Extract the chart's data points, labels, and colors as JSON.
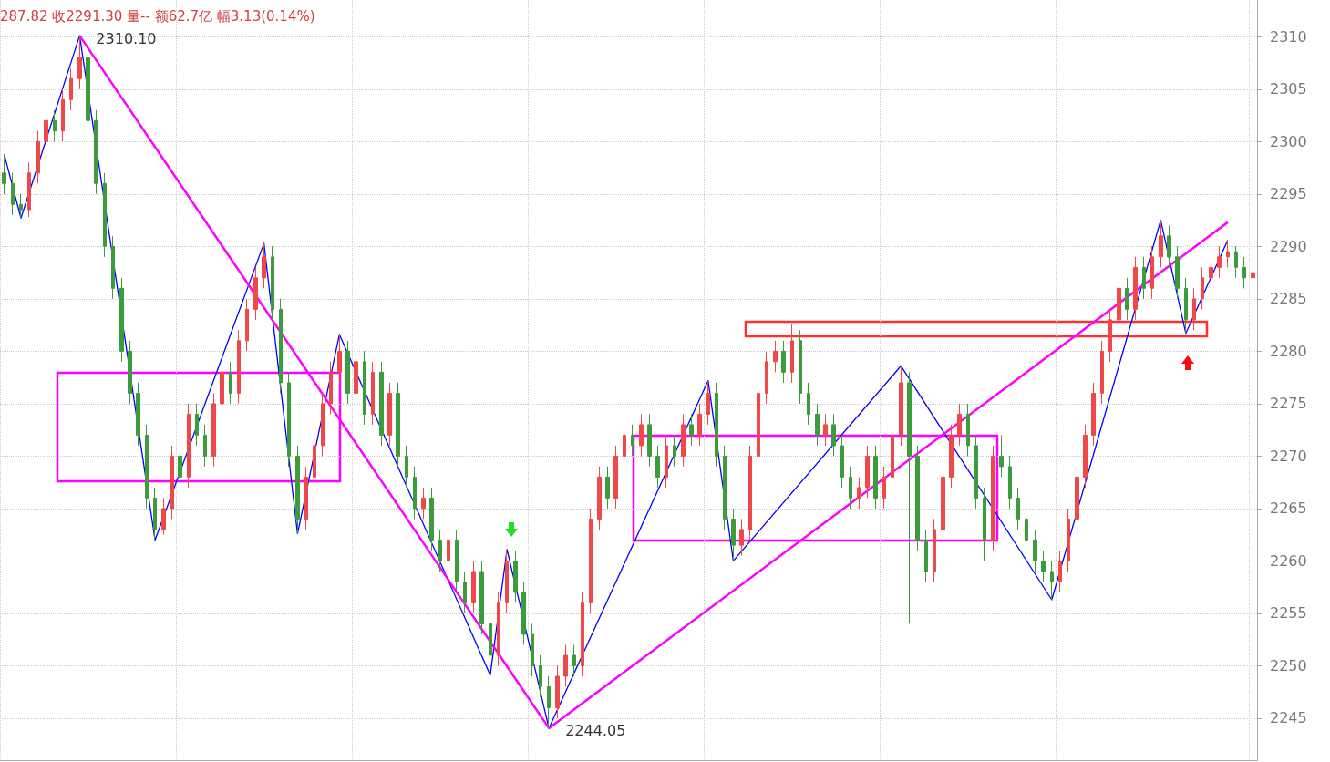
{
  "chart_data": {
    "type": "candlestick",
    "categories": [
      null,
      null,
      null,
      null,
      null,
      null,
      null,
      null,
      null,
      null,
      null,
      null,
      null,
      null,
      null,
      null,
      null,
      null,
      null,
      null,
      null,
      null,
      null,
      null,
      null,
      null,
      null,
      null,
      null,
      null,
      null,
      null,
      null,
      null,
      null,
      null,
      null,
      null,
      null,
      null,
      null,
      null,
      null,
      null,
      null,
      null,
      null,
      null,
      null,
      null,
      null,
      null,
      null,
      null,
      null,
      null,
      null,
      null,
      null,
      null,
      null,
      null,
      null,
      null,
      null,
      null,
      null,
      null,
      null,
      null,
      null,
      null,
      null,
      null,
      null,
      null,
      null,
      null,
      null,
      null,
      null,
      null,
      null,
      null,
      null,
      null,
      null,
      null,
      null,
      null,
      null,
      null,
      null,
      null,
      null,
      null,
      null,
      null,
      null,
      null,
      null,
      null,
      null,
      null,
      null,
      null,
      null,
      null,
      null,
      null,
      null,
      null,
      null,
      null,
      null,
      null,
      null,
      null,
      null,
      null,
      null,
      null,
      null,
      null,
      null,
      null,
      null,
      null,
      null,
      null,
      null,
      null,
      null,
      null,
      null,
      null,
      null,
      null,
      null,
      null,
      null,
      null,
      null,
      null,
      null,
      null,
      null,
      null,
      null,
      null
    ],
    "ohlc": [
      [
        2297,
        2298.8,
        2295,
        2296
      ],
      [
        2296,
        2297,
        2293,
        2294
      ],
      [
        2294,
        2295,
        2292.7,
        2293.5
      ],
      [
        2293.5,
        2298,
        2292.8,
        2297
      ],
      [
        2297,
        2301,
        2296,
        2300
      ],
      [
        2300,
        2303,
        2299,
        2302
      ],
      [
        2302,
        2303,
        2300,
        2301
      ],
      [
        2301,
        2305,
        2300,
        2304
      ],
      [
        2304,
        2307,
        2303,
        2306
      ],
      [
        2306,
        2310.1,
        2305,
        2308
      ],
      [
        2308,
        2309,
        2301,
        2302
      ],
      [
        2302,
        2303,
        2295,
        2296
      ],
      [
        2296,
        2297,
        2289,
        2290
      ],
      [
        2290,
        2291,
        2285,
        2286
      ],
      [
        2286,
        2287,
        2279,
        2280
      ],
      [
        2280,
        2281,
        2275,
        2276
      ],
      [
        2276,
        2277,
        2271,
        2272
      ],
      [
        2272,
        2273,
        2265,
        2266
      ],
      [
        2266,
        2267,
        2262,
        2263
      ],
      [
        2263,
        2266,
        2262.5,
        2265
      ],
      [
        2265,
        2271,
        2264,
        2270
      ],
      [
        2270,
        2271,
        2267,
        2268
      ],
      [
        2268,
        2275,
        2267,
        2274
      ],
      [
        2274,
        2275,
        2271,
        2272
      ],
      [
        2272,
        2273,
        2269,
        2270
      ],
      [
        2270,
        2276,
        2269,
        2275
      ],
      [
        2275,
        2279,
        2274,
        2278
      ],
      [
        2278,
        2279,
        2275,
        2276
      ],
      [
        2276,
        2282,
        2275,
        2281
      ],
      [
        2281,
        2285,
        2280,
        2284
      ],
      [
        2284,
        2288,
        2283,
        2287
      ],
      [
        2287,
        2290.3,
        2286,
        2289
      ],
      [
        2289,
        2290,
        2283,
        2284
      ],
      [
        2284,
        2285,
        2276,
        2277
      ],
      [
        2277,
        2278,
        2269,
        2270
      ],
      [
        2270,
        2271,
        2262.6,
        2264
      ],
      [
        2264,
        2269,
        2263,
        2268
      ],
      [
        2268,
        2272,
        2267,
        2271
      ],
      [
        2271,
        2276,
        2270,
        2275
      ],
      [
        2275,
        2279,
        2274,
        2278
      ],
      [
        2278,
        2281.6,
        2277,
        2280
      ],
      [
        2280,
        2281,
        2275,
        2276
      ],
      [
        2276,
        2280,
        2275,
        2279
      ],
      [
        2279,
        2280,
        2273,
        2274
      ],
      [
        2274,
        2279,
        2273,
        2278
      ],
      [
        2278,
        2279,
        2271,
        2272
      ],
      [
        2272,
        2277,
        2271,
        2276
      ],
      [
        2276,
        2277,
        2269,
        2270
      ],
      [
        2270,
        2271,
        2267,
        2268
      ],
      [
        2268,
        2269,
        2264,
        2265
      ],
      [
        2265,
        2267,
        2264,
        2266
      ],
      [
        2266,
        2267,
        2261,
        2262
      ],
      [
        2262,
        2263,
        2259,
        2260
      ],
      [
        2260,
        2263,
        2259,
        2262
      ],
      [
        2262,
        2263,
        2257,
        2258
      ],
      [
        2258,
        2259,
        2255,
        2256
      ],
      [
        2256,
        2260,
        2255,
        2259
      ],
      [
        2259,
        2260,
        2253,
        2254
      ],
      [
        2254,
        2255,
        2249.1,
        2251
      ],
      [
        2251,
        2257,
        2250,
        2256
      ],
      [
        2256,
        2261.1,
        2255,
        2260
      ],
      [
        2260,
        2261,
        2256,
        2257
      ],
      [
        2257,
        2258,
        2252,
        2253
      ],
      [
        2253,
        2254,
        2249,
        2250
      ],
      [
        2250,
        2251,
        2247,
        2248
      ],
      [
        2248,
        2249,
        2244.05,
        2246
      ],
      [
        2246,
        2250,
        2245,
        2249
      ],
      [
        2249,
        2252,
        2248,
        2251
      ],
      [
        2251,
        2252,
        2249,
        2250
      ],
      [
        2250,
        2257,
        2249,
        2256
      ],
      [
        2256,
        2265,
        2255,
        2264
      ],
      [
        2264,
        2269,
        2263,
        2268
      ],
      [
        2268,
        2269,
        2265,
        2266
      ],
      [
        2266,
        2271,
        2265,
        2270
      ],
      [
        2270,
        2273,
        2269,
        2272
      ],
      [
        2272,
        2273,
        2270,
        2271
      ],
      [
        2271,
        2274,
        2270,
        2273
      ],
      [
        2273,
        2274,
        2269,
        2270
      ],
      [
        2270,
        2271,
        2267,
        2268
      ],
      [
        2268,
        2272,
        2267,
        2271
      ],
      [
        2271,
        2272,
        2269,
        2270
      ],
      [
        2270,
        2274,
        2269,
        2273
      ],
      [
        2273,
        2274,
        2271,
        2272
      ],
      [
        2272,
        2275,
        2271,
        2274
      ],
      [
        2274,
        2277.2,
        2273,
        2276
      ],
      [
        2276,
        2277,
        2269,
        2270
      ],
      [
        2270,
        2271,
        2263,
        2264
      ],
      [
        2264,
        2265,
        2260,
        2261.5
      ],
      [
        2261.5,
        2264,
        2260.5,
        2263
      ],
      [
        2263,
        2271,
        2262,
        2270
      ],
      [
        2270,
        2277,
        2269,
        2276
      ],
      [
        2276,
        2280,
        2275,
        2279
      ],
      [
        2279,
        2281,
        2278,
        2280
      ],
      [
        2280,
        2281,
        2277,
        2278
      ],
      [
        2278,
        2282.6,
        2277,
        2281
      ],
      [
        2281,
        2282,
        2275,
        2276
      ],
      [
        2276,
        2277,
        2273,
        2274
      ],
      [
        2274,
        2275,
        2271,
        2272
      ],
      [
        2272,
        2274,
        2271,
        2273
      ],
      [
        2273,
        2274,
        2270,
        2271
      ],
      [
        2271,
        2272,
        2267,
        2268
      ],
      [
        2268,
        2269,
        2265,
        2266
      ],
      [
        2266,
        2268,
        2265,
        2267
      ],
      [
        2267,
        2271,
        2266,
        2270
      ],
      [
        2270,
        2271,
        2265,
        2266
      ],
      [
        2266,
        2269,
        2265,
        2268
      ],
      [
        2268,
        2273,
        2267,
        2272
      ],
      [
        2272,
        2278.6,
        2271,
        2277
      ],
      [
        2277,
        2278,
        2254,
        2270
      ],
      [
        2270,
        2271,
        2261,
        2262
      ],
      [
        2262,
        2263,
        2258,
        2259
      ],
      [
        2259,
        2264,
        2258,
        2263
      ],
      [
        2263,
        2269,
        2262,
        2268
      ],
      [
        2268,
        2273,
        2267,
        2272
      ],
      [
        2272,
        2275,
        2271,
        2274
      ],
      [
        2274,
        2275,
        2270,
        2271
      ],
      [
        2271,
        2272,
        2265,
        2266
      ],
      [
        2266,
        2267,
        2260,
        2262
      ],
      [
        2262,
        2271,
        2261,
        2270
      ],
      [
        2270,
        2272,
        2268,
        2269
      ],
      [
        2269,
        2270,
        2265,
        2266
      ],
      [
        2266,
        2267,
        2263,
        2264
      ],
      [
        2264,
        2265,
        2261,
        2262
      ],
      [
        2262,
        2263,
        2259,
        2260
      ],
      [
        2260,
        2261,
        2258,
        2259
      ],
      [
        2259,
        2260,
        2256.3,
        2258
      ],
      [
        2258,
        2261,
        2257,
        2260
      ],
      [
        2260,
        2265,
        2259,
        2264
      ],
      [
        2264,
        2269,
        2263,
        2268
      ],
      [
        2268,
        2273,
        2267,
        2272
      ],
      [
        2272,
        2277,
        2271,
        2276
      ],
      [
        2276,
        2281,
        2275,
        2280
      ],
      [
        2280,
        2284,
        2279,
        2283
      ],
      [
        2283,
        2287,
        2282,
        2286
      ],
      [
        2286,
        2287,
        2283,
        2284
      ],
      [
        2284,
        2289,
        2283,
        2288
      ],
      [
        2288,
        2289,
        2285,
        2286
      ],
      [
        2286,
        2290,
        2285,
        2289
      ],
      [
        2289,
        2292.5,
        2288,
        2291
      ],
      [
        2291,
        2292,
        2288,
        2289
      ],
      [
        2289,
        2290,
        2285,
        2286
      ],
      [
        2286,
        2287,
        2281.7,
        2283
      ],
      [
        2283,
        2286,
        2282,
        2285
      ],
      [
        2285,
        2288,
        2284,
        2287
      ],
      [
        2287,
        2289,
        2286,
        2288
      ],
      [
        2288,
        2290,
        2287,
        2289
      ],
      [
        2289,
        2290.6,
        2288,
        2289.5
      ],
      [
        2289.5,
        2290,
        2287,
        2288
      ],
      [
        2288,
        2289,
        2286,
        2287
      ],
      [
        2287,
        2288.5,
        2286,
        2287.5
      ]
    ],
    "colors": [
      "#3c9c3c",
      "#3c9c3c",
      "#3c9c3c",
      "#f04848",
      "#f04848",
      "#f04848",
      "#3c9c3c",
      "#f04848",
      "#f04848",
      "#f04848",
      "#3c9c3c",
      "#3c9c3c",
      "#3c9c3c",
      "#3c9c3c",
      "#3c9c3c",
      "#3c9c3c",
      "#3c9c3c",
      "#3c9c3c",
      "#3c9c3c",
      "#f04848",
      "#f04848",
      "#3c9c3c",
      "#f04848",
      "#3c9c3c",
      "#3c9c3c",
      "#f04848",
      "#f04848",
      "#3c9c3c",
      "#f04848",
      "#f04848",
      "#f04848",
      "#f04848",
      "#3c9c3c",
      "#3c9c3c",
      "#3c9c3c",
      "#3c9c3c",
      "#f04848",
      "#f04848",
      "#f04848",
      "#f04848",
      "#f04848",
      "#3c9c3c",
      "#f04848",
      "#3c9c3c",
      "#f04848",
      "#3c9c3c",
      "#f04848",
      "#3c9c3c",
      "#3c9c3c",
      "#3c9c3c",
      "#f04848",
      "#3c9c3c",
      "#3c9c3c",
      "#f04848",
      "#3c9c3c",
      "#3c9c3c",
      "#f04848",
      "#3c9c3c",
      "#3c9c3c",
      "#f04848",
      "#f04848",
      "#3c9c3c",
      "#3c9c3c",
      "#3c9c3c",
      "#3c9c3c",
      "#3c9c3c",
      "#f04848",
      "#f04848",
      "#3c9c3c",
      "#f04848",
      "#f04848",
      "#f04848",
      "#3c9c3c",
      "#f04848",
      "#f04848",
      "#3c9c3c",
      "#f04848",
      "#3c9c3c",
      "#3c9c3c",
      "#f04848",
      "#3c9c3c",
      "#f04848",
      "#3c9c3c",
      "#f04848",
      "#f04848",
      "#3c9c3c",
      "#3c9c3c",
      "#3c9c3c",
      "#f04848",
      "#f04848",
      "#f04848",
      "#f04848",
      "#f04848",
      "#3c9c3c",
      "#f04848",
      "#3c9c3c",
      "#3c9c3c",
      "#3c9c3c",
      "#f04848",
      "#3c9c3c",
      "#3c9c3c",
      "#3c9c3c",
      "#f04848",
      "#f04848",
      "#3c9c3c",
      "#f04848",
      "#f04848",
      "#f04848",
      "#3c9c3c",
      "#3c9c3c",
      "#3c9c3c",
      "#f04848",
      "#f04848",
      "#f04848",
      "#f04848",
      "#3c9c3c",
      "#3c9c3c",
      "#3c9c3c",
      "#f04848",
      "#3c9c3c",
      "#3c9c3c",
      "#3c9c3c",
      "#3c9c3c",
      "#3c9c3c",
      "#3c9c3c",
      "#3c9c3c",
      "#f04848",
      "#f04848",
      "#f04848",
      "#f04848",
      "#f04848",
      "#f04848",
      "#f04848",
      "#f04848",
      "#3c9c3c",
      "#f04848",
      "#3c9c3c",
      "#f04848",
      "#f04848",
      "#3c9c3c",
      "#3c9c3c",
      "#3c9c3c",
      "#f04848",
      "#f04848",
      "#f04848",
      "#f04848",
      "#f04848",
      "#3c9c3c",
      "#3c9c3c",
      "#f04848"
    ],
    "series": [
      {
        "type": "line",
        "color": "#0000ff",
        "values": [
          2298.8,
          null,
          2292.7,
          null,
          null,
          null,
          null,
          null,
          null,
          2310.1,
          null,
          null,
          null,
          null,
          null,
          null,
          null,
          null,
          2262.0,
          null,
          null,
          null,
          null,
          null,
          null,
          null,
          null,
          null,
          null,
          null,
          null,
          2290.3,
          null,
          null,
          null,
          2262.6,
          null,
          null,
          null,
          null,
          2281.6,
          null,
          null,
          null,
          null,
          null,
          null,
          null,
          null,
          null,
          null,
          null,
          null,
          null,
          null,
          null,
          null,
          null,
          2249.1,
          null,
          2261.1,
          null,
          null,
          null,
          null,
          2244.05,
          null,
          null,
          null,
          null,
          null,
          null,
          null,
          null,
          null,
          null,
          null,
          null,
          null,
          null,
          null,
          null,
          null,
          null,
          2277.2,
          null,
          null,
          2260.0,
          null,
          null,
          null,
          null,
          null,
          null,
          null,
          null,
          null,
          null,
          null,
          null,
          null,
          null,
          null,
          null,
          null,
          null,
          null,
          2278.6,
          null,
          null,
          null,
          null,
          null,
          null,
          null,
          null,
          null,
          null,
          null,
          null,
          null,
          null,
          null,
          null,
          null,
          2256.3,
          null,
          null,
          null,
          null,
          null,
          null,
          null,
          null,
          null,
          null,
          null,
          null,
          2292.5,
          null,
          null,
          2281.7,
          null,
          null,
          null,
          null,
          2290.6,
          null,
          null,
          null
        ]
      },
      {
        "type": "line",
        "color": "#ff00ff",
        "values": [
          null,
          null,
          null,
          null,
          null,
          null,
          null,
          null,
          null,
          2310.1,
          null,
          null,
          null,
          null,
          null,
          null,
          null,
          null,
          null,
          null,
          null,
          null,
          null,
          null,
          null,
          null,
          null,
          null,
          null,
          null,
          null,
          null,
          null,
          null,
          null,
          null,
          null,
          null,
          null,
          null,
          null,
          null,
          null,
          null,
          null,
          null,
          null,
          null,
          null,
          null,
          null,
          null,
          null,
          null,
          null,
          null,
          null,
          null,
          null,
          null,
          null,
          null,
          null,
          null,
          null,
          2244.05,
          null,
          null,
          null,
          null,
          null,
          null,
          null,
          null,
          null,
          null,
          null,
          null,
          null,
          null,
          null,
          null,
          null,
          null,
          null,
          null,
          null,
          null,
          null,
          null,
          null,
          null,
          null,
          null,
          null,
          null,
          null,
          null,
          null,
          null,
          null,
          null,
          null,
          null,
          null,
          null,
          null,
          null,
          null,
          null,
          null,
          null,
          null,
          null,
          null,
          null,
          null,
          null,
          null,
          null,
          null,
          null,
          null,
          null,
          null,
          null,
          null,
          null,
          null,
          null,
          null,
          null,
          null,
          null,
          null,
          null,
          null,
          null,
          null,
          null,
          null,
          null,
          null,
          null,
          null,
          null,
          2292.3,
          null,
          null,
          null
        ]
      }
    ],
    "ylim": [
      2241,
      2313.5
    ],
    "yticks": [
      2245,
      2250,
      2255,
      2260,
      2265,
      2270,
      2275,
      2280,
      2285,
      2290,
      2295,
      2300,
      2305,
      2310
    ],
    "grid": true,
    "tick_labels": "y",
    "marker": "none",
    "line_style": "solid",
    "annotations": [
      "287.82 收2291.30 量-- 额62.7亿 幅3.13(0.14%)",
      "2310.10",
      "2244.05"
    ]
  }
}
